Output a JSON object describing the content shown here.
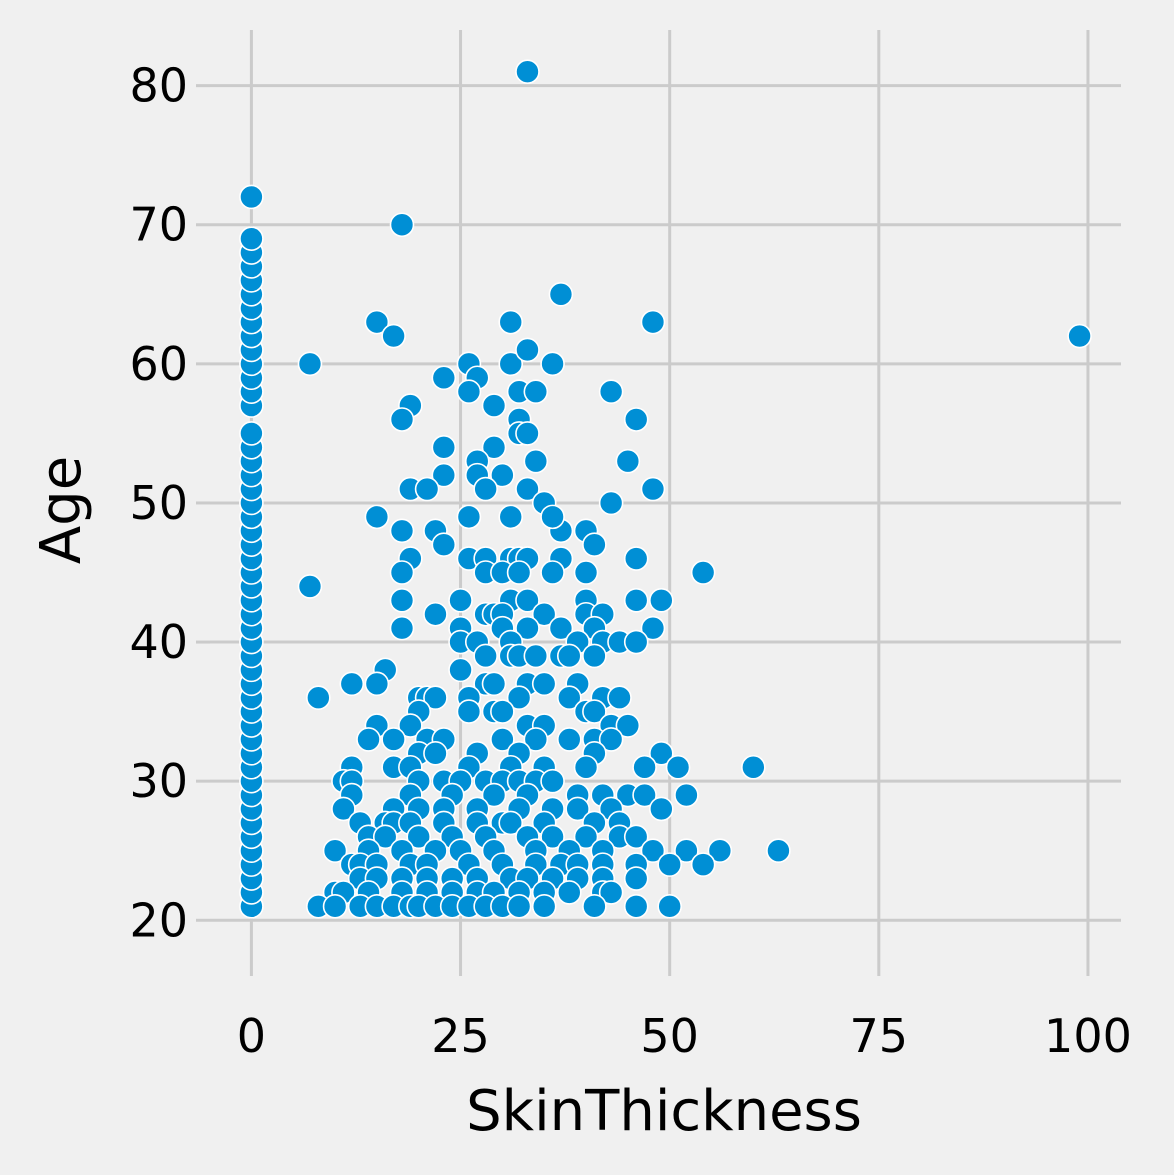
{
  "chart_data": {
    "type": "scatter",
    "title": "",
    "xlabel": "SkinThickness",
    "ylabel": "Age",
    "xlim": [
      -4.95,
      103.95
    ],
    "ylim": [
      17,
      84
    ],
    "xticks": [
      0,
      25,
      50,
      75,
      100
    ],
    "yticks": [
      20,
      30,
      40,
      50,
      60,
      70,
      80
    ],
    "grid": true,
    "legend": "none",
    "color": "#008fd5",
    "background": "#f0f0f0",
    "grid_color": "#cbcbcb",
    "points": [
      [
        0,
        21
      ],
      [
        0,
        22
      ],
      [
        0,
        23
      ],
      [
        0,
        24
      ],
      [
        0,
        25
      ],
      [
        0,
        26
      ],
      [
        0,
        27
      ],
      [
        0,
        28
      ],
      [
        0,
        29
      ],
      [
        0,
        30
      ],
      [
        0,
        31
      ],
      [
        0,
        32
      ],
      [
        0,
        33
      ],
      [
        0,
        34
      ],
      [
        0,
        35
      ],
      [
        0,
        36
      ],
      [
        0,
        37
      ],
      [
        0,
        38
      ],
      [
        0,
        39
      ],
      [
        0,
        40
      ],
      [
        0,
        41
      ],
      [
        0,
        42
      ],
      [
        0,
        43
      ],
      [
        0,
        44
      ],
      [
        0,
        45
      ],
      [
        0,
        46
      ],
      [
        0,
        47
      ],
      [
        0,
        48
      ],
      [
        0,
        49
      ],
      [
        0,
        50
      ],
      [
        0,
        51
      ],
      [
        0,
        52
      ],
      [
        0,
        53
      ],
      [
        0,
        54
      ],
      [
        0,
        55
      ],
      [
        0,
        57
      ],
      [
        0,
        58
      ],
      [
        0,
        59
      ],
      [
        0,
        60
      ],
      [
        0,
        61
      ],
      [
        0,
        62
      ],
      [
        0,
        63
      ],
      [
        0,
        64
      ],
      [
        0,
        65
      ],
      [
        0,
        66
      ],
      [
        0,
        67
      ],
      [
        0,
        68
      ],
      [
        0,
        69
      ],
      [
        0,
        72
      ],
      [
        33,
        81
      ],
      [
        18,
        70
      ],
      [
        37,
        65
      ],
      [
        15,
        63
      ],
      [
        31,
        63
      ],
      [
        48,
        63
      ],
      [
        17,
        62
      ],
      [
        99,
        62
      ],
      [
        7,
        60
      ],
      [
        26,
        60
      ],
      [
        31,
        60
      ],
      [
        36,
        60
      ],
      [
        33,
        61
      ],
      [
        23,
        59
      ],
      [
        27,
        59
      ],
      [
        26,
        58
      ],
      [
        32,
        58
      ],
      [
        34,
        58
      ],
      [
        43,
        58
      ],
      [
        19,
        57
      ],
      [
        29,
        57
      ],
      [
        18,
        56
      ],
      [
        32,
        56
      ],
      [
        46,
        56
      ],
      [
        32,
        55
      ],
      [
        33,
        55
      ],
      [
        23,
        54
      ],
      [
        29,
        54
      ],
      [
        27,
        53
      ],
      [
        34,
        53
      ],
      [
        45,
        53
      ],
      [
        23,
        52
      ],
      [
        27,
        52
      ],
      [
        30,
        52
      ],
      [
        19,
        51
      ],
      [
        21,
        51
      ],
      [
        28,
        51
      ],
      [
        33,
        51
      ],
      [
        48,
        51
      ],
      [
        15,
        49
      ],
      [
        26,
        49
      ],
      [
        31,
        49
      ],
      [
        35,
        50
      ],
      [
        37,
        48
      ],
      [
        43,
        50
      ],
      [
        18,
        48
      ],
      [
        22,
        48
      ],
      [
        36,
        49
      ],
      [
        40,
        48
      ],
      [
        23,
        47
      ],
      [
        41,
        47
      ],
      [
        19,
        46
      ],
      [
        26,
        46
      ],
      [
        28,
        46
      ],
      [
        31,
        46
      ],
      [
        32,
        46
      ],
      [
        33,
        46
      ],
      [
        37,
        46
      ],
      [
        46,
        46
      ],
      [
        7,
        44
      ],
      [
        18,
        45
      ],
      [
        28,
        45
      ],
      [
        30,
        45
      ],
      [
        32,
        45
      ],
      [
        36,
        45
      ],
      [
        40,
        45
      ],
      [
        54,
        45
      ],
      [
        18,
        43
      ],
      [
        25,
        43
      ],
      [
        31,
        43
      ],
      [
        33,
        43
      ],
      [
        40,
        43
      ],
      [
        46,
        43
      ],
      [
        49,
        43
      ],
      [
        22,
        42
      ],
      [
        28,
        42
      ],
      [
        29,
        42
      ],
      [
        30,
        42
      ],
      [
        35,
        42
      ],
      [
        40,
        42
      ],
      [
        42,
        42
      ],
      [
        18,
        41
      ],
      [
        25,
        41
      ],
      [
        30,
        41
      ],
      [
        33,
        41
      ],
      [
        37,
        41
      ],
      [
        41,
        41
      ],
      [
        48,
        41
      ],
      [
        25,
        40
      ],
      [
        27,
        40
      ],
      [
        31,
        40
      ],
      [
        39,
        40
      ],
      [
        42,
        40
      ],
      [
        44,
        40
      ],
      [
        46,
        40
      ],
      [
        16,
        38
      ],
      [
        25,
        38
      ],
      [
        28,
        39
      ],
      [
        31,
        39
      ],
      [
        32,
        39
      ],
      [
        34,
        39
      ],
      [
        37,
        39
      ],
      [
        38,
        39
      ],
      [
        41,
        39
      ],
      [
        8,
        36
      ],
      [
        12,
        37
      ],
      [
        15,
        37
      ],
      [
        28,
        37
      ],
      [
        29,
        37
      ],
      [
        33,
        37
      ],
      [
        35,
        37
      ],
      [
        39,
        37
      ],
      [
        20,
        36
      ],
      [
        21,
        36
      ],
      [
        22,
        36
      ],
      [
        26,
        36
      ],
      [
        32,
        36
      ],
      [
        38,
        36
      ],
      [
        42,
        36
      ],
      [
        44,
        36
      ],
      [
        20,
        35
      ],
      [
        26,
        35
      ],
      [
        29,
        35
      ],
      [
        30,
        35
      ],
      [
        40,
        35
      ],
      [
        41,
        35
      ],
      [
        15,
        34
      ],
      [
        19,
        34
      ],
      [
        33,
        34
      ],
      [
        35,
        34
      ],
      [
        43,
        34
      ],
      [
        45,
        34
      ],
      [
        14,
        33
      ],
      [
        17,
        33
      ],
      [
        21,
        33
      ],
      [
        23,
        33
      ],
      [
        30,
        33
      ],
      [
        34,
        33
      ],
      [
        38,
        33
      ],
      [
        41,
        33
      ],
      [
        43,
        33
      ],
      [
        20,
        32
      ],
      [
        22,
        32
      ],
      [
        27,
        32
      ],
      [
        32,
        32
      ],
      [
        41,
        32
      ],
      [
        49,
        32
      ],
      [
        12,
        31
      ],
      [
        17,
        31
      ],
      [
        19,
        31
      ],
      [
        26,
        31
      ],
      [
        31,
        31
      ],
      [
        35,
        31
      ],
      [
        40,
        31
      ],
      [
        47,
        31
      ],
      [
        51,
        31
      ],
      [
        60,
        31
      ],
      [
        11,
        30
      ],
      [
        12,
        30
      ],
      [
        20,
        30
      ],
      [
        23,
        30
      ],
      [
        25,
        30
      ],
      [
        28,
        30
      ],
      [
        30,
        30
      ],
      [
        32,
        30
      ],
      [
        34,
        30
      ],
      [
        36,
        30
      ],
      [
        12,
        29
      ],
      [
        19,
        29
      ],
      [
        24,
        29
      ],
      [
        29,
        29
      ],
      [
        33,
        29
      ],
      [
        39,
        29
      ],
      [
        42,
        29
      ],
      [
        45,
        29
      ],
      [
        47,
        29
      ],
      [
        52,
        29
      ],
      [
        11,
        28
      ],
      [
        17,
        28
      ],
      [
        20,
        28
      ],
      [
        23,
        28
      ],
      [
        27,
        28
      ],
      [
        32,
        28
      ],
      [
        36,
        28
      ],
      [
        39,
        28
      ],
      [
        43,
        28
      ],
      [
        49,
        28
      ],
      [
        13,
        27
      ],
      [
        16,
        27
      ],
      [
        17,
        27
      ],
      [
        19,
        27
      ],
      [
        23,
        27
      ],
      [
        27,
        27
      ],
      [
        30,
        27
      ],
      [
        31,
        27
      ],
      [
        35,
        27
      ],
      [
        41,
        27
      ],
      [
        44,
        27
      ],
      [
        14,
        26
      ],
      [
        16,
        26
      ],
      [
        20,
        26
      ],
      [
        24,
        26
      ],
      [
        28,
        26
      ],
      [
        33,
        26
      ],
      [
        36,
        26
      ],
      [
        40,
        26
      ],
      [
        44,
        26
      ],
      [
        46,
        26
      ],
      [
        10,
        25
      ],
      [
        14,
        25
      ],
      [
        18,
        25
      ],
      [
        22,
        25
      ],
      [
        25,
        25
      ],
      [
        29,
        25
      ],
      [
        34,
        25
      ],
      [
        38,
        25
      ],
      [
        42,
        25
      ],
      [
        48,
        25
      ],
      [
        52,
        25
      ],
      [
        56,
        25
      ],
      [
        63,
        25
      ],
      [
        12,
        24
      ],
      [
        13,
        24
      ],
      [
        15,
        24
      ],
      [
        19,
        24
      ],
      [
        21,
        24
      ],
      [
        26,
        24
      ],
      [
        30,
        24
      ],
      [
        34,
        24
      ],
      [
        37,
        24
      ],
      [
        39,
        24
      ],
      [
        42,
        24
      ],
      [
        46,
        24
      ],
      [
        50,
        24
      ],
      [
        54,
        24
      ],
      [
        13,
        23
      ],
      [
        15,
        23
      ],
      [
        18,
        23
      ],
      [
        21,
        23
      ],
      [
        24,
        23
      ],
      [
        27,
        23
      ],
      [
        31,
        23
      ],
      [
        33,
        23
      ],
      [
        36,
        23
      ],
      [
        39,
        23
      ],
      [
        42,
        23
      ],
      [
        46,
        23
      ],
      [
        10,
        22
      ],
      [
        11,
        22
      ],
      [
        14,
        22
      ],
      [
        18,
        22
      ],
      [
        21,
        22
      ],
      [
        24,
        22
      ],
      [
        27,
        22
      ],
      [
        29,
        22
      ],
      [
        32,
        22
      ],
      [
        35,
        22
      ],
      [
        38,
        22
      ],
      [
        42,
        22
      ],
      [
        43,
        22
      ],
      [
        8,
        21
      ],
      [
        10,
        21
      ],
      [
        13,
        21
      ],
      [
        15,
        21
      ],
      [
        17,
        21
      ],
      [
        19,
        21
      ],
      [
        20,
        21
      ],
      [
        22,
        21
      ],
      [
        24,
        21
      ],
      [
        26,
        21
      ],
      [
        28,
        21
      ],
      [
        30,
        21
      ],
      [
        32,
        21
      ],
      [
        35,
        21
      ],
      [
        41,
        21
      ],
      [
        46,
        21
      ],
      [
        50,
        21
      ]
    ]
  }
}
